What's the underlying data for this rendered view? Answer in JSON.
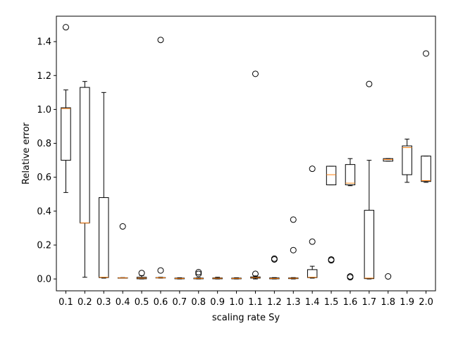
{
  "chart_data": {
    "type": "box",
    "xlabel": "scaling rate Sy",
    "ylabel": "Relative error",
    "categories": [
      "0.1",
      "0.2",
      "0.3",
      "0.4",
      "0.5",
      "0.6",
      "0.7",
      "0.8",
      "0.9",
      "1.0",
      "1.1",
      "1.2",
      "1.3",
      "1.4",
      "1.5",
      "1.6",
      "1.7",
      "1.8",
      "1.9",
      "2.0"
    ],
    "ylim": [
      -0.07,
      1.55
    ],
    "yticks": [
      0.0,
      0.2,
      0.4,
      0.6,
      0.8,
      1.0,
      1.2,
      1.4
    ],
    "ytick_labels": [
      "0.0",
      "0.2",
      "0.4",
      "0.6",
      "0.8",
      "1.0",
      "1.2",
      "1.4"
    ],
    "grid": false,
    "colors": {
      "box": "#000000",
      "median": "#ff7f0e",
      "flier": "#000000"
    },
    "boxes": [
      {
        "category": "0.1",
        "whislo": 0.51,
        "q1": 0.7,
        "med": 1.005,
        "q3": 1.01,
        "whishi": 1.115,
        "fliers": [
          1.485
        ]
      },
      {
        "category": "0.2",
        "whislo": 0.01,
        "q1": 0.33,
        "med": 0.33,
        "q3": 1.13,
        "whishi": 1.165,
        "fliers": []
      },
      {
        "category": "0.3",
        "whislo": 0.005,
        "q1": 0.008,
        "med": 0.01,
        "q3": 0.48,
        "whishi": 1.1,
        "fliers": []
      },
      {
        "category": "0.4",
        "whislo": 0.005,
        "q1": 0.005,
        "med": 0.006,
        "q3": 0.007,
        "whishi": 0.008,
        "fliers": [
          0.31
        ]
      },
      {
        "category": "0.5",
        "whislo": 0.0,
        "q1": 0.001,
        "med": 0.005,
        "q3": 0.01,
        "whishi": 0.02,
        "fliers": [
          0.035
        ]
      },
      {
        "category": "0.6",
        "whislo": 0.005,
        "q1": 0.006,
        "med": 0.007,
        "q3": 0.008,
        "whishi": 0.01,
        "fliers": [
          0.05,
          1.41
        ]
      },
      {
        "category": "0.7",
        "whislo": 0.0,
        "q1": 0.001,
        "med": 0.003,
        "q3": 0.005,
        "whishi": 0.007,
        "fliers": []
      },
      {
        "category": "0.8",
        "whislo": 0.0,
        "q1": 0.001,
        "med": 0.003,
        "q3": 0.005,
        "whishi": 0.007,
        "fliers": [
          0.03,
          0.04
        ]
      },
      {
        "category": "0.9",
        "whislo": 0.0,
        "q1": 0.001,
        "med": 0.004,
        "q3": 0.006,
        "whishi": 0.01,
        "fliers": []
      },
      {
        "category": "1.0",
        "whislo": 0.0,
        "q1": 0.001,
        "med": 0.003,
        "q3": 0.005,
        "whishi": 0.007,
        "fliers": []
      },
      {
        "category": "1.1",
        "whislo": 0.0,
        "q1": 0.005,
        "med": 0.008,
        "q3": 0.012,
        "whishi": 0.018,
        "fliers": [
          0.03,
          1.21
        ]
      },
      {
        "category": "1.2",
        "whislo": 0.0,
        "q1": 0.001,
        "med": 0.003,
        "q3": 0.006,
        "whishi": 0.008,
        "fliers": [
          0.115,
          0.12
        ]
      },
      {
        "category": "1.3",
        "whislo": 0.0,
        "q1": 0.002,
        "med": 0.004,
        "q3": 0.006,
        "whishi": 0.008,
        "fliers": [
          0.17,
          0.35
        ]
      },
      {
        "category": "1.4",
        "whislo": 0.005,
        "q1": 0.008,
        "med": 0.01,
        "q3": 0.055,
        "whishi": 0.075,
        "fliers": [
          0.22,
          0.65
        ]
      },
      {
        "category": "1.5",
        "whislo": 0.555,
        "q1": 0.555,
        "med": 0.615,
        "q3": 0.665,
        "whishi": 0.665,
        "fliers": [
          0.11,
          0.115
        ]
      },
      {
        "category": "1.6",
        "whislo": 0.55,
        "q1": 0.555,
        "med": 0.565,
        "q3": 0.675,
        "whishi": 0.71,
        "fliers": [
          0.01,
          0.015
        ]
      },
      {
        "category": "1.7",
        "whislo": 0.0,
        "q1": 0.002,
        "med": 0.005,
        "q3": 0.405,
        "whishi": 0.7,
        "fliers": [
          1.15
        ]
      },
      {
        "category": "1.8",
        "whislo": 0.695,
        "q1": 0.695,
        "med": 0.705,
        "q3": 0.71,
        "whishi": 0.71,
        "fliers": [
          0.015
        ]
      },
      {
        "category": "1.9",
        "whislo": 0.57,
        "q1": 0.615,
        "med": 0.775,
        "q3": 0.785,
        "whishi": 0.825,
        "fliers": []
      },
      {
        "category": "2.0",
        "whislo": 0.57,
        "q1": 0.575,
        "med": 0.58,
        "q3": 0.725,
        "whishi": 0.725,
        "fliers": [
          1.33
        ]
      }
    ]
  }
}
